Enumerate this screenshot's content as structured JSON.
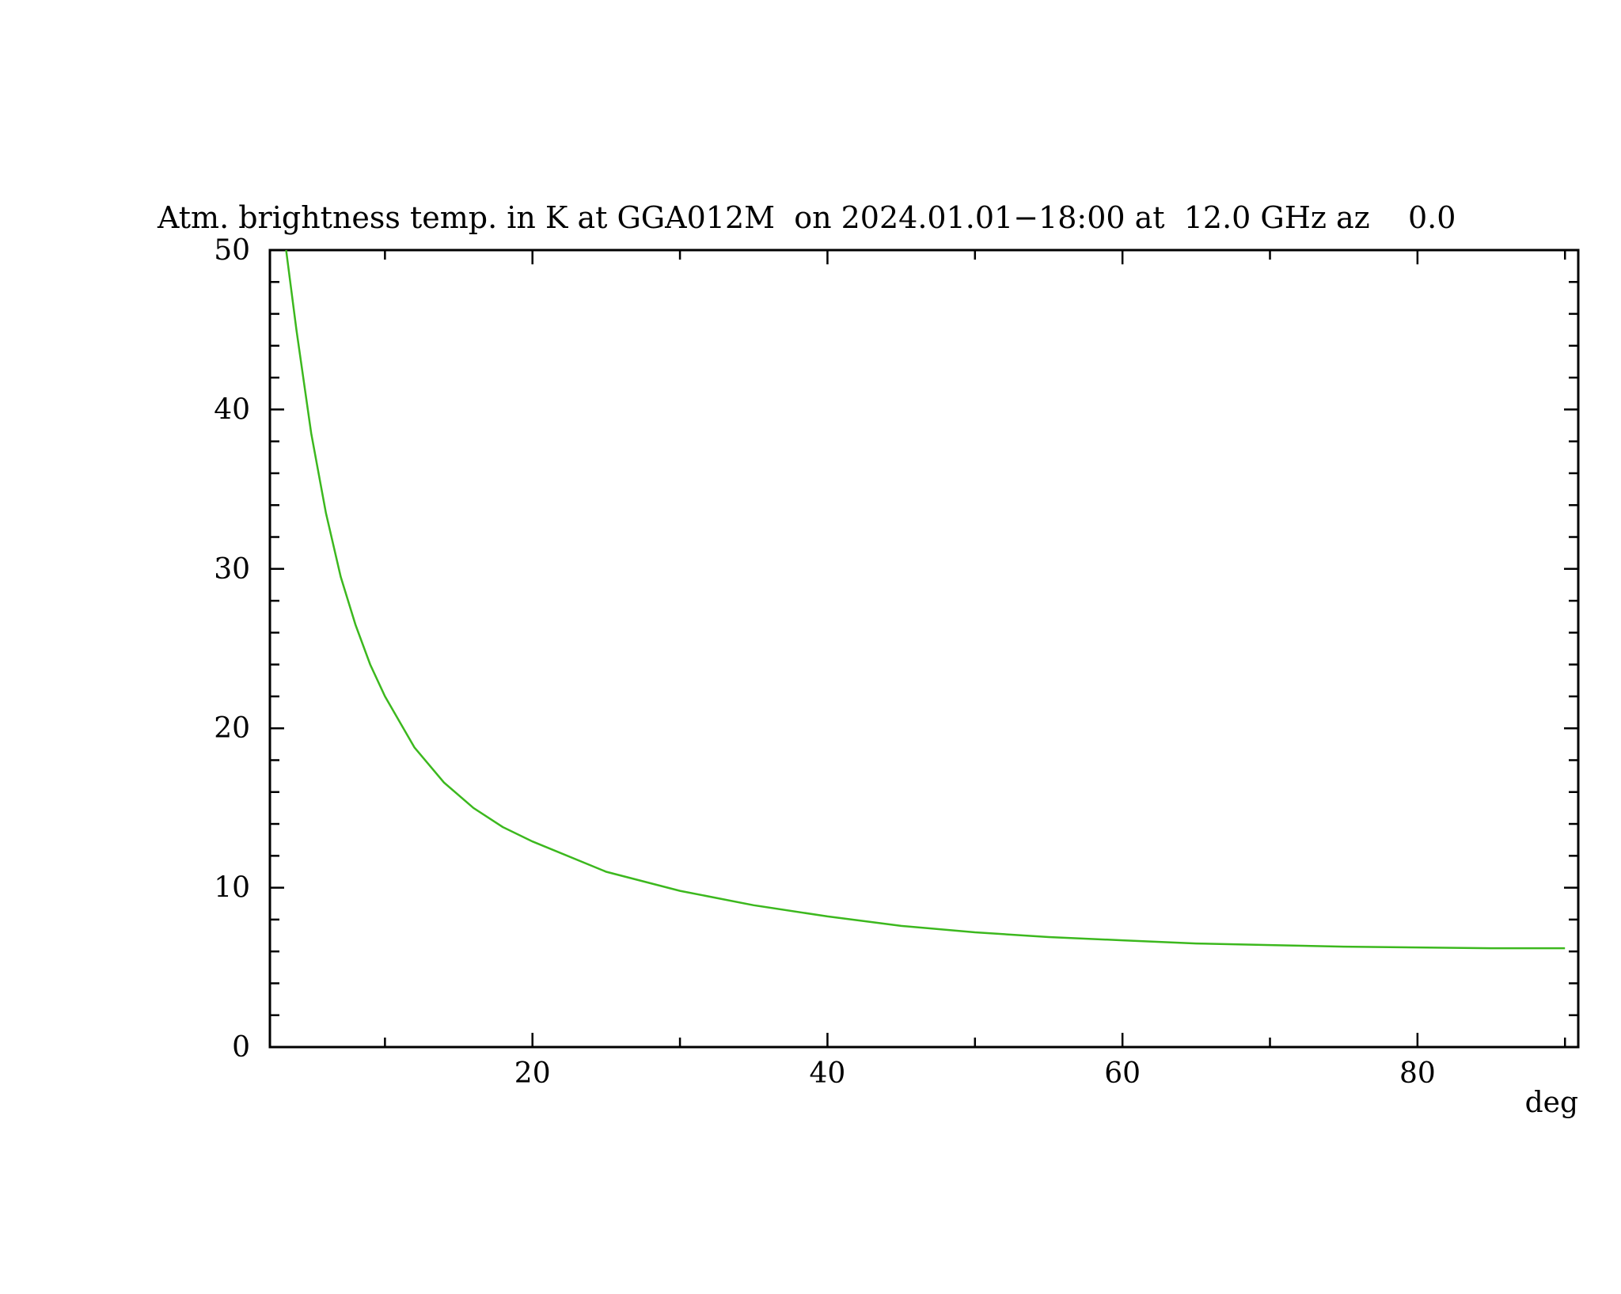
{
  "chart_data": {
    "type": "line",
    "title": "Atm. brightness temp. in K at GGA012M  on 2024.01.01−18:00 at  12.0 GHz az    0.0",
    "x_label": "deg",
    "x": [
      3.3,
      4,
      5,
      6,
      7,
      8,
      9,
      10,
      12,
      14,
      16,
      18,
      20,
      25,
      30,
      35,
      40,
      45,
      50,
      55,
      60,
      65,
      70,
      75,
      80,
      85,
      90
    ],
    "series": [
      {
        "color": "#3cb81e",
        "values": [
          50,
          45,
          38.5,
          33.5,
          29.5,
          26.5,
          24,
          22,
          18.8,
          16.6,
          15,
          13.8,
          12.9,
          11,
          9.8,
          8.9,
          8.2,
          7.6,
          7.2,
          6.9,
          6.7,
          6.5,
          6.4,
          6.3,
          6.25,
          6.2,
          6.2
        ]
      }
    ],
    "xlim": [
      2.2,
      90.9
    ],
    "ylim": [
      0,
      50
    ],
    "xticks": [
      20,
      40,
      60,
      80
    ],
    "yticks": [
      0,
      10,
      20,
      30,
      40,
      50
    ],
    "xminorticks": [
      10,
      30,
      50,
      70,
      90
    ],
    "yminorticks": [
      2,
      4,
      6,
      8,
      12,
      14,
      16,
      18,
      22,
      24,
      26,
      28,
      32,
      34,
      36,
      38,
      42,
      44,
      46,
      48
    ]
  }
}
